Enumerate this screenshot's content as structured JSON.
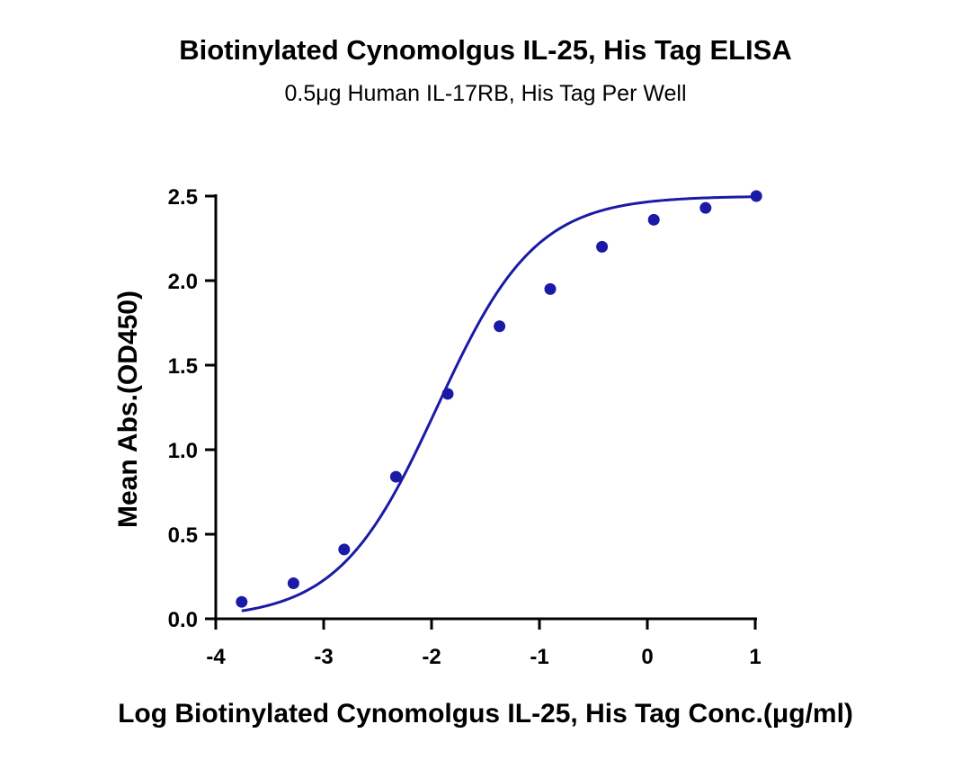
{
  "chart_data": {
    "type": "scatter",
    "title": "Biotinylated Cynomolgus IL-25, His Tag ELISA",
    "subtitle": "0.5μg Human IL-17RB, His Tag Per Well",
    "xlabel": "Log Biotinylated Cynomolgus IL-25, His Tag Conc.(μg/ml)",
    "ylabel": "Mean Abs.(OD450)",
    "xlim": [
      -4,
      1
    ],
    "ylim": [
      0,
      2.5
    ],
    "x_ticks": [
      -4,
      -3,
      -2,
      -1,
      0,
      1
    ],
    "x_tick_labels": [
      "-4",
      "-3",
      "-2",
      "-1",
      "0",
      "1"
    ],
    "y_ticks": [
      0,
      0.5,
      1,
      1.5,
      2,
      2.5
    ],
    "y_tick_labels": [
      "0.0",
      "0.5",
      "1.0",
      "1.5",
      "2.0",
      "2.5"
    ],
    "grid": false,
    "legend": "none",
    "color": "#1a1aa6",
    "series": [
      {
        "x": [
          -3.76,
          -3.28,
          -2.81,
          -2.33,
          -1.85,
          -1.37,
          -0.9,
          -0.42,
          0.06,
          0.54,
          1.01
        ],
        "y": [
          0.1,
          0.21,
          0.41,
          0.84,
          1.33,
          1.73,
          1.95,
          2.2,
          2.36,
          2.43,
          2.5
        ]
      }
    ],
    "fit": {
      "model": "4PL",
      "bottom": 0.0,
      "top": 2.5,
      "logEC50": -1.95,
      "hillslope": 0.95,
      "x_range": [
        -3.76,
        1.01
      ]
    }
  }
}
